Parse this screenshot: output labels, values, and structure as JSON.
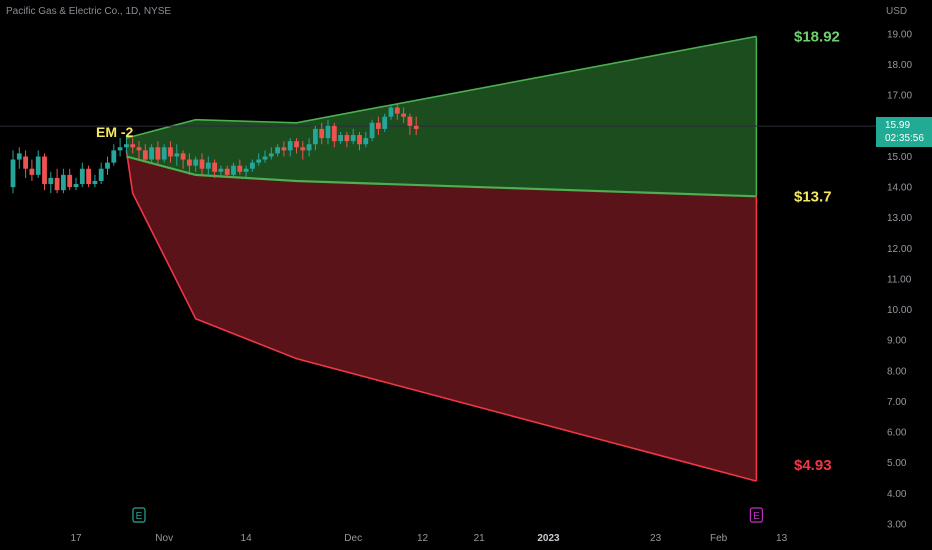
{
  "header": {
    "symbol_line": "Pacific Gas & Electric Co., 1D, NYSE",
    "currency": "USD"
  },
  "last_price": {
    "value": "15.99",
    "countdown": "02:35:56",
    "color": "#22ab94"
  },
  "annotation": {
    "label": "EM -2"
  },
  "colors": {
    "up": "#26a69a",
    "down": "#ef5350",
    "green_zone": "#1b4d1f",
    "red_zone": "#5a1419",
    "green_line": "#4caf50",
    "red_line": "#f23645",
    "level_top": "#6fd06f",
    "level_mid": "#f5e663",
    "level_low": "#f23645"
  },
  "chart_data": {
    "type": "candlestick",
    "ylim": [
      3.0,
      19.6
    ],
    "y_ticks": [
      "19.00",
      "18.00",
      "17.00",
      "16.00",
      "15.00",
      "14.00",
      "13.00",
      "12.00",
      "11.00",
      "10.00",
      "9.00",
      "8.00",
      "7.00",
      "6.00",
      "5.00",
      "4.00",
      "3.00"
    ],
    "x_tick_labels": [
      {
        "label": "17",
        "d": 0,
        "bold": false
      },
      {
        "label": "Nov",
        "d": 14,
        "bold": false
      },
      {
        "label": "14",
        "d": 27,
        "bold": false
      },
      {
        "label": "Dec",
        "d": 44,
        "bold": false
      },
      {
        "label": "12",
        "d": 55,
        "bold": false
      },
      {
        "label": "21",
        "d": 64,
        "bold": false
      },
      {
        "label": "2023",
        "d": 75,
        "bold": true
      },
      {
        "label": "23",
        "d": 92,
        "bold": false
      },
      {
        "label": "Feb",
        "d": 102,
        "bold": false
      },
      {
        "label": "13",
        "d": 112,
        "bold": false
      }
    ],
    "levels": [
      {
        "label": "$18.92",
        "value": 18.92
      },
      {
        "label": "$13.7",
        "value": 13.7
      },
      {
        "label": "$4.93",
        "value": 4.93
      }
    ],
    "upper_band": [
      [
        8,
        15.6
      ],
      [
        19,
        16.2
      ],
      [
        35,
        16.1
      ],
      [
        108,
        18.92
      ]
    ],
    "mid_band": [
      [
        8,
        15.0
      ],
      [
        19,
        14.4
      ],
      [
        35,
        14.2
      ],
      [
        108,
        13.7
      ]
    ],
    "lower_band": [
      [
        8,
        15.2
      ],
      [
        9,
        13.8
      ],
      [
        19,
        9.7
      ],
      [
        35,
        8.4
      ],
      [
        108,
        4.4
      ]
    ],
    "earnings_markers": [
      {
        "label": "E",
        "d": 10
      },
      {
        "label": "E",
        "d": 108
      }
    ],
    "candles": [
      [
        -10,
        14.0,
        14.9,
        15.2,
        13.8
      ],
      [
        -9,
        14.9,
        15.1,
        15.3,
        14.6
      ],
      [
        -8,
        15.0,
        14.6,
        15.2,
        14.3
      ],
      [
        -7,
        14.6,
        14.4,
        14.9,
        14.2
      ],
      [
        -6,
        14.4,
        15.0,
        15.2,
        14.3
      ],
      [
        -5,
        15.0,
        14.1,
        15.1,
        13.9
      ],
      [
        -4,
        14.1,
        14.3,
        14.5,
        13.8
      ],
      [
        -3,
        14.3,
        13.9,
        14.6,
        13.8
      ],
      [
        -2,
        13.9,
        14.4,
        14.6,
        13.8
      ],
      [
        -1,
        14.4,
        14.0,
        14.6,
        13.9
      ],
      [
        0,
        14.0,
        14.1,
        14.3,
        13.9
      ],
      [
        1,
        14.1,
        14.6,
        14.8,
        14.0
      ],
      [
        2,
        14.6,
        14.1,
        14.7,
        14.0
      ],
      [
        3,
        14.1,
        14.2,
        14.4,
        14.0
      ],
      [
        4,
        14.2,
        14.6,
        14.8,
        14.1
      ],
      [
        5,
        14.6,
        14.8,
        15.0,
        14.4
      ],
      [
        6,
        14.8,
        15.2,
        15.4,
        14.7
      ],
      [
        7,
        15.2,
        15.3,
        15.6,
        15.0
      ],
      [
        8,
        15.3,
        15.4,
        15.7,
        15.1
      ],
      [
        9,
        15.4,
        15.3,
        15.6,
        15.1
      ],
      [
        10,
        15.3,
        15.2,
        15.5,
        14.9
      ],
      [
        11,
        15.2,
        14.9,
        15.4,
        14.8
      ],
      [
        12,
        14.9,
        15.3,
        15.4,
        14.8
      ],
      [
        13,
        15.3,
        14.9,
        15.5,
        14.7
      ],
      [
        14,
        14.9,
        15.3,
        15.4,
        14.8
      ],
      [
        15,
        15.3,
        15.0,
        15.5,
        14.8
      ],
      [
        16,
        15.0,
        15.1,
        15.4,
        14.7
      ],
      [
        17,
        15.1,
        14.9,
        15.2,
        14.6
      ],
      [
        18,
        14.9,
        14.7,
        15.1,
        14.4
      ],
      [
        19,
        14.7,
        14.9,
        15.0,
        14.5
      ],
      [
        20,
        14.9,
        14.6,
        15.1,
        14.4
      ],
      [
        21,
        14.6,
        14.8,
        15.0,
        14.4
      ],
      [
        22,
        14.8,
        14.5,
        14.9,
        14.3
      ],
      [
        23,
        14.5,
        14.6,
        14.7,
        14.3
      ],
      [
        24,
        14.6,
        14.4,
        14.7,
        14.3
      ],
      [
        25,
        14.4,
        14.7,
        14.8,
        14.3
      ],
      [
        26,
        14.7,
        14.5,
        14.9,
        14.4
      ],
      [
        27,
        14.5,
        14.6,
        14.7,
        14.3
      ],
      [
        28,
        14.6,
        14.8,
        14.9,
        14.5
      ],
      [
        29,
        14.8,
        14.9,
        15.1,
        14.7
      ],
      [
        30,
        14.9,
        15.0,
        15.2,
        14.8
      ],
      [
        31,
        15.0,
        15.1,
        15.3,
        14.9
      ],
      [
        32,
        15.1,
        15.3,
        15.4,
        15.0
      ],
      [
        33,
        15.3,
        15.2,
        15.5,
        15.0
      ],
      [
        34,
        15.2,
        15.5,
        15.6,
        15.0
      ],
      [
        35,
        15.5,
        15.3,
        15.6,
        15.1
      ],
      [
        36,
        15.3,
        15.2,
        15.5,
        14.9
      ],
      [
        37,
        15.2,
        15.4,
        15.6,
        15.0
      ],
      [
        38,
        15.4,
        15.9,
        16.0,
        15.2
      ],
      [
        39,
        15.9,
        15.6,
        16.1,
        15.4
      ],
      [
        40,
        15.6,
        16.0,
        16.2,
        15.4
      ],
      [
        41,
        16.0,
        15.5,
        16.1,
        15.3
      ],
      [
        42,
        15.5,
        15.7,
        15.8,
        15.4
      ],
      [
        43,
        15.7,
        15.5,
        15.8,
        15.3
      ],
      [
        44,
        15.5,
        15.7,
        15.9,
        15.4
      ],
      [
        45,
        15.7,
        15.4,
        15.8,
        15.2
      ],
      [
        46,
        15.4,
        15.6,
        15.8,
        15.3
      ],
      [
        47,
        15.6,
        16.1,
        16.2,
        15.5
      ],
      [
        48,
        16.1,
        15.9,
        16.3,
        15.7
      ],
      [
        49,
        15.9,
        16.3,
        16.4,
        15.8
      ],
      [
        50,
        16.3,
        16.6,
        16.7,
        16.2
      ],
      [
        51,
        16.6,
        16.4,
        16.7,
        16.2
      ],
      [
        52,
        16.4,
        16.3,
        16.6,
        16.1
      ],
      [
        53,
        16.3,
        16.0,
        16.4,
        15.7
      ],
      [
        54,
        16.0,
        15.9,
        16.3,
        15.7
      ]
    ]
  }
}
